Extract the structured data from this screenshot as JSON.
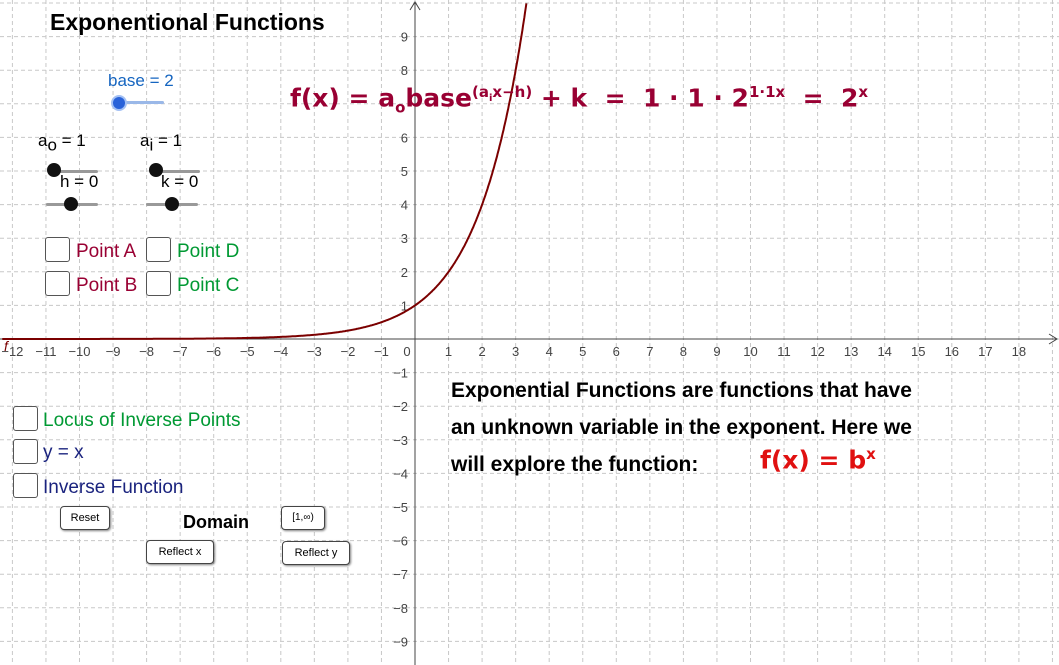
{
  "title": "Exponentional Functions",
  "sliders": {
    "base": {
      "label": "base = 2",
      "value": 2,
      "color": "#1565c0"
    },
    "a_o": {
      "name": "a",
      "sub": "o",
      "eq": " = 1",
      "value": 1
    },
    "a_i": {
      "name": "a",
      "sub": "i",
      "eq": " = 1",
      "value": 1
    },
    "h": {
      "label": "h = 0",
      "value": 0
    },
    "k": {
      "label": "k = 0",
      "value": 0
    }
  },
  "checkboxes": {
    "point_a": {
      "label": "Point A",
      "color": "#990033",
      "checked": false
    },
    "point_d": {
      "label": "Point D",
      "color": "#009933",
      "checked": false
    },
    "point_b": {
      "label": "Point B",
      "color": "#990033",
      "checked": false
    },
    "point_c": {
      "label": "Point C",
      "color": "#009933",
      "checked": false
    },
    "locus": {
      "label": "Locus of Inverse Points",
      "color": "#009933",
      "checked": false
    },
    "y_eq_x": {
      "label": "y = x",
      "color": "#1a237e",
      "checked": false
    },
    "inverse": {
      "label": "Inverse Function",
      "color": "#1a237e",
      "checked": false
    }
  },
  "buttons": {
    "reset": "Reset",
    "domain_value": "[1,∞)",
    "reflect_x": "Reflect x",
    "reflect_y": "Reflect y"
  },
  "domain_label": "Domain",
  "formula": {
    "lhs": "f(x) = a",
    "lhs_sub": "o",
    "base_word": "base",
    "exp_pre": "(a",
    "exp_sub": "i",
    "exp_post": "x−h)",
    "plus_k": " + k  =  1 · 1 · 2",
    "mid_exp": "1·1x",
    "eq_rhs": "  =  2",
    "rhs_exp": "x",
    "color": "#990033"
  },
  "description": {
    "line1": "Exponential Functions are functions that have",
    "line2": "an unknown variable in the exponent. Here we",
    "line3": "will explore the function:",
    "formula_base": "f(x) = b",
    "formula_exp": "x",
    "formula_color": "#e01010"
  },
  "graph": {
    "curve_label": "f",
    "curve_color": "#7b0000",
    "grid": true,
    "x_ticks": [
      -12,
      -11,
      -10,
      -9,
      -8,
      -7,
      -6,
      -5,
      -4,
      -3,
      -2,
      -1,
      0,
      1,
      2,
      3,
      4,
      5,
      6,
      7,
      8,
      9,
      10,
      11,
      12,
      13,
      14,
      15,
      16,
      17,
      18
    ],
    "y_ticks": [
      -9,
      -8,
      -7,
      -6,
      -5,
      -4,
      -3,
      -2,
      -1,
      1,
      2,
      3,
      4,
      5,
      6,
      8,
      9
    ],
    "x_range": [
      -12.3,
      19.3
    ],
    "y_range": [
      -9.5,
      10.0
    ]
  }
}
